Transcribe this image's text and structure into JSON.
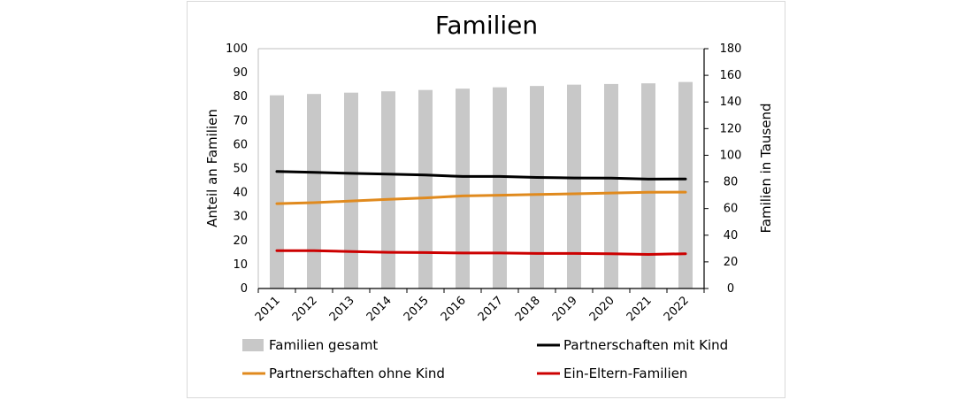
{
  "chart_data": {
    "type": "bar+line",
    "title": "Familien",
    "categories": [
      "2011",
      "2012",
      "2013",
      "2014",
      "2015",
      "2016",
      "2017",
      "2018",
      "2019",
      "2020",
      "2021",
      "2022"
    ],
    "ylabel_left": "Anteil an Familien",
    "ylabel_right": "Familien in Tausend",
    "ylim_left": [
      0,
      100
    ],
    "ylim_right": [
      0,
      180
    ],
    "yticks_left": [
      "0",
      "10",
      "20",
      "30",
      "40",
      "50",
      "60",
      "70",
      "80",
      "90",
      "100"
    ],
    "yticks_right": [
      "0",
      "20",
      "40",
      "60",
      "80",
      "100",
      "120",
      "140",
      "160",
      "180"
    ],
    "grid": false,
    "legend_position": "bottom",
    "series": [
      {
        "name": "Familien gesamt",
        "kind": "bar",
        "axis": "right",
        "color": "#c8c8c8",
        "values": [
          145,
          146,
          147,
          148,
          149,
          150,
          151,
          152,
          153,
          153.5,
          154,
          155
        ]
      },
      {
        "name": "Partnerschaften mit Kind",
        "kind": "line",
        "axis": "left",
        "color": "#000000",
        "values": [
          48.8,
          48.4,
          48.0,
          47.7,
          47.3,
          46.7,
          46.7,
          46.3,
          46.1,
          46.0,
          45.6,
          45.7
        ]
      },
      {
        "name": "Partnerschaften ohne Kind",
        "kind": "line",
        "axis": "left",
        "color": "#e08a1e",
        "values": [
          35.4,
          35.8,
          36.5,
          37.2,
          37.8,
          38.6,
          38.9,
          39.2,
          39.5,
          39.8,
          40.1,
          40.2
        ]
      },
      {
        "name": "Ein-Eltern-Familien",
        "kind": "line",
        "axis": "left",
        "color": "#cc0000",
        "values": [
          15.8,
          15.8,
          15.4,
          15.1,
          15.0,
          14.8,
          14.8,
          14.6,
          14.6,
          14.5,
          14.2,
          14.5
        ]
      }
    ]
  }
}
